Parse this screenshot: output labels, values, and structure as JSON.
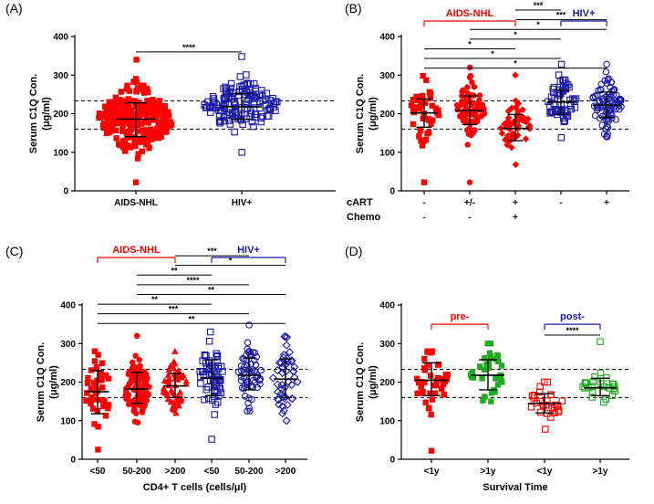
{
  "colors": {
    "red": "#ff0000",
    "blue": "#1a1aa8",
    "green": "#1faa1f",
    "black": "#000000"
  },
  "reference_lines": [
    160,
    233
  ],
  "chart_data": [
    {
      "id": "A",
      "panel_label": "(A)",
      "type": "scatter",
      "ylabel": [
        "Serum C1Q Con.",
        "(μg/ml)"
      ],
      "xlabel": "",
      "ylim": [
        0,
        400
      ],
      "yticks": [
        0,
        100,
        200,
        300,
        400
      ],
      "categories": [
        "AIDS-NHL",
        "HIV+"
      ],
      "series": [
        {
          "category": "AIDS-NHL",
          "color": "red",
          "marker": "square-filled",
          "n": 260,
          "mean": 186,
          "sd_low": 140,
          "sd_high": 228,
          "min": 22,
          "max": 340
        },
        {
          "category": "HIV+",
          "color": "blue",
          "marker": "square-open",
          "n": 140,
          "mean": 218,
          "sd_low": 185,
          "sd_high": 252,
          "min": 100,
          "max": 348
        }
      ],
      "comparisons": [
        {
          "from": 0,
          "to": 1,
          "label": "****"
        }
      ],
      "groups": []
    },
    {
      "id": "B",
      "panel_label": "(B)",
      "type": "scatter",
      "ylabel": [
        "Serum C1Q Con.",
        "(μg/ml)"
      ],
      "xlabel": "",
      "ylim": [
        0,
        400
      ],
      "yticks": [
        0,
        100,
        200,
        300,
        400
      ],
      "categories": [
        "",
        "",
        "",
        "",
        ""
      ],
      "row_labels": [
        {
          "label": "cART",
          "values": [
            "-",
            "+/-",
            "+",
            "-",
            "+"
          ]
        },
        {
          "label": "Chemo",
          "values": [
            "-",
            "-",
            "+",
            "",
            ""
          ]
        }
      ],
      "series": [
        {
          "category": 0,
          "color": "red",
          "marker": "square-filled",
          "n": 45,
          "mean": 202,
          "sd_low": 165,
          "sd_high": 238,
          "min": 22,
          "max": 298
        },
        {
          "category": 1,
          "color": "red",
          "marker": "circle-filled",
          "n": 75,
          "mean": 208,
          "sd_low": 172,
          "sd_high": 246,
          "min": 22,
          "max": 320
        },
        {
          "category": 2,
          "color": "red",
          "marker": "diamond-filled",
          "n": 55,
          "mean": 162,
          "sd_low": 130,
          "sd_high": 198,
          "min": 68,
          "max": 300
        },
        {
          "category": 3,
          "color": "blue",
          "marker": "square-open",
          "n": 60,
          "mean": 230,
          "sd_low": 198,
          "sd_high": 262,
          "min": 138,
          "max": 328
        },
        {
          "category": 4,
          "color": "blue",
          "marker": "circle-open",
          "n": 90,
          "mean": 222,
          "sd_low": 190,
          "sd_high": 256,
          "min": 140,
          "max": 328
        }
      ],
      "comparisons": [
        {
          "from": 2,
          "to": 3,
          "label": "***"
        },
        {
          "from": 2,
          "to": 4,
          "label": "***"
        },
        {
          "from": 1,
          "to": 4,
          "label": "*"
        },
        {
          "from": 1,
          "to": 3,
          "label": "*"
        },
        {
          "from": 0,
          "to": 2,
          "label": "*"
        },
        {
          "from": 0,
          "to": 3,
          "label": "*"
        },
        {
          "from": 0,
          "to": 4,
          "label": "*"
        }
      ],
      "groups": [
        {
          "label": "AIDS-NHL",
          "color": "red",
          "from": 0,
          "to": 2
        },
        {
          "label": "HIV+",
          "color": "blue",
          "from": 3,
          "to": 4
        }
      ]
    },
    {
      "id": "C",
      "panel_label": "(C)",
      "type": "scatter",
      "ylabel": [
        "Serum C1Q Con.",
        "(μg/ml)"
      ],
      "xlabel": "CD4+ T cells (cells/μl)",
      "ylim": [
        0,
        400
      ],
      "yticks": [
        0,
        100,
        200,
        300,
        400
      ],
      "categories": [
        "<50",
        "50-200",
        ">200",
        "<50",
        "50-200",
        ">200"
      ],
      "series": [
        {
          "category": 0,
          "color": "red",
          "marker": "square-filled",
          "n": 40,
          "mean": 175,
          "sd_low": 118,
          "sd_high": 230,
          "min": 25,
          "max": 280
        },
        {
          "category": 1,
          "color": "red",
          "marker": "circle-filled",
          "n": 110,
          "mean": 182,
          "sd_low": 145,
          "sd_high": 225,
          "min": 95,
          "max": 320
        },
        {
          "category": 2,
          "color": "red",
          "marker": "triangle-filled",
          "n": 55,
          "mean": 190,
          "sd_low": 160,
          "sd_high": 222,
          "min": 120,
          "max": 280
        },
        {
          "category": 3,
          "color": "blue",
          "marker": "square-open",
          "n": 65,
          "mean": 210,
          "sd_low": 165,
          "sd_high": 258,
          "min": 52,
          "max": 330
        },
        {
          "category": 4,
          "color": "blue",
          "marker": "circle-open",
          "n": 60,
          "mean": 218,
          "sd_low": 180,
          "sd_high": 262,
          "min": 125,
          "max": 348
        },
        {
          "category": 5,
          "color": "blue",
          "marker": "diamond-open",
          "n": 45,
          "mean": 208,
          "sd_low": 160,
          "sd_high": 260,
          "min": 100,
          "max": 318
        }
      ],
      "comparisons": [
        {
          "from": 2,
          "to": 4,
          "label": "***"
        },
        {
          "from": 2,
          "to": 5,
          "label": "*"
        },
        {
          "from": 1,
          "to": 3,
          "label": "**"
        },
        {
          "from": 1,
          "to": 4,
          "label": "****"
        },
        {
          "from": 1,
          "to": 5,
          "label": "**"
        },
        {
          "from": 0,
          "to": 3,
          "label": "**"
        },
        {
          "from": 0,
          "to": 4,
          "label": "***"
        },
        {
          "from": 0,
          "to": 5,
          "label": "**"
        }
      ],
      "groups": [
        {
          "label": "AIDS-NHL",
          "color": "red",
          "from": 0,
          "to": 2
        },
        {
          "label": "HIV+",
          "color": "blue",
          "from": 3,
          "to": 5
        }
      ]
    },
    {
      "id": "D",
      "panel_label": "(D)",
      "type": "scatter",
      "ylabel": [
        "Serum C1Q Con.",
        "(μg/ml)"
      ],
      "xlabel": "Survival Time",
      "ylim": [
        0,
        400
      ],
      "yticks": [
        0,
        100,
        200,
        300,
        400
      ],
      "categories": [
        "<1y",
        ">1y",
        "<1y",
        ">1y"
      ],
      "series": [
        {
          "category": 0,
          "color": "red",
          "marker": "square-filled",
          "n": 42,
          "mean": 205,
          "sd_low": 165,
          "sd_high": 250,
          "min": 22,
          "max": 280
        },
        {
          "category": 1,
          "color": "green",
          "marker": "square-filled",
          "n": 32,
          "mean": 218,
          "sd_low": 180,
          "sd_high": 258,
          "min": 150,
          "max": 300
        },
        {
          "category": 2,
          "color": "red",
          "marker": "square-open",
          "n": 30,
          "mean": 145,
          "sd_low": 120,
          "sd_high": 170,
          "min": 78,
          "max": 200
        },
        {
          "category": 3,
          "color": "green",
          "marker": "square-open",
          "n": 26,
          "mean": 185,
          "sd_low": 165,
          "sd_high": 210,
          "min": 148,
          "max": 305
        }
      ],
      "comparisons": [
        {
          "from": 2,
          "to": 3,
          "label": "****"
        }
      ],
      "groups": [
        {
          "label": "pre-",
          "color": "red",
          "from": 0,
          "to": 1
        },
        {
          "label": "post-",
          "color": "blue",
          "from": 2,
          "to": 3
        }
      ]
    }
  ]
}
